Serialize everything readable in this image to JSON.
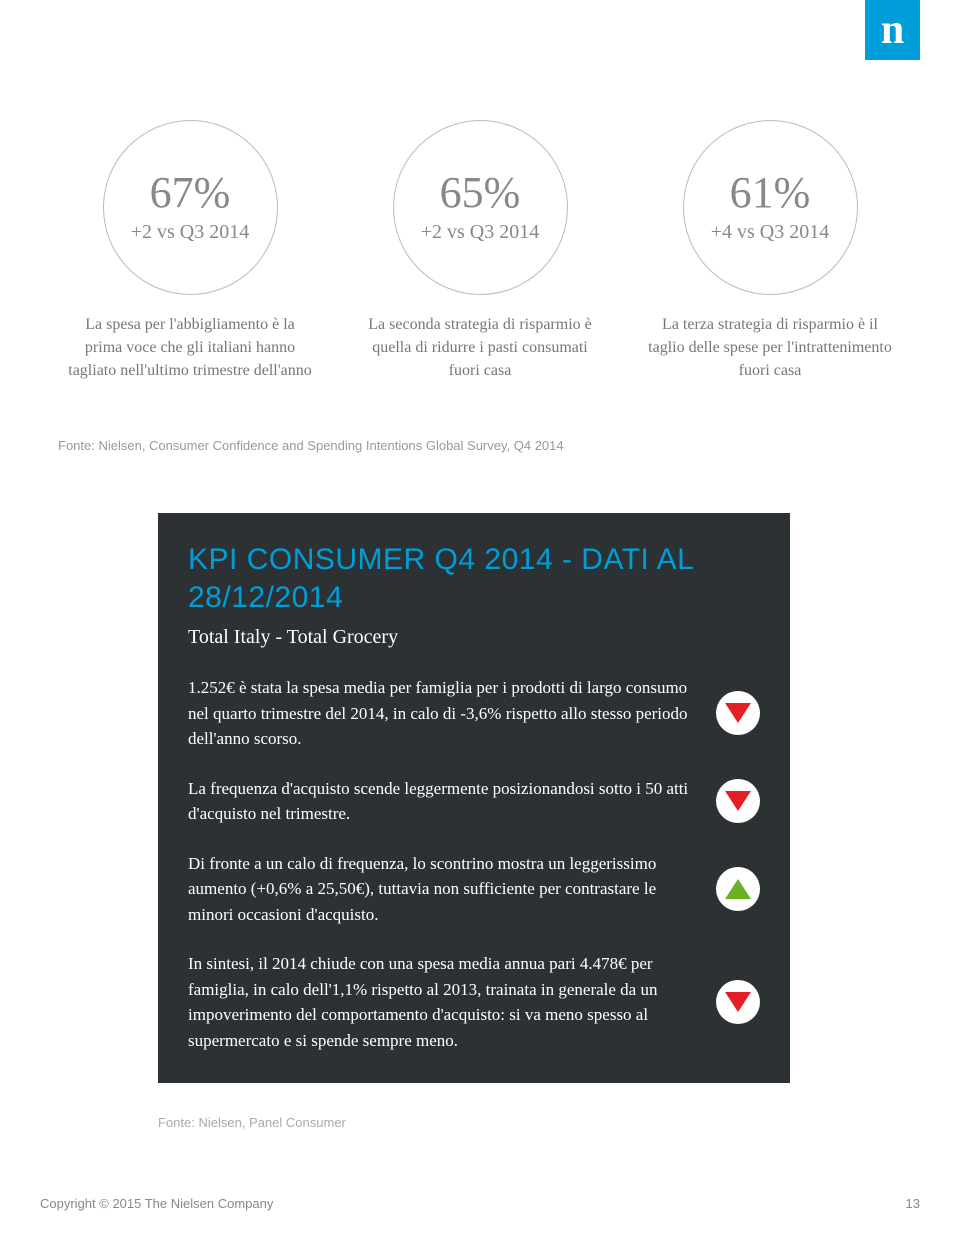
{
  "logo_letter": "n",
  "circles": [
    {
      "pct": "67%",
      "delta": "+2 vs Q3 2014",
      "desc": "La spesa per l'abbigliamento è la prima voce che gli italiani hanno tagliato nell'ultimo trimestre dell'anno"
    },
    {
      "pct": "65%",
      "delta": "+2 vs Q3 2014",
      "desc": "La seconda strategia di risparmio è quella di ridurre i pasti consumati fuori casa"
    },
    {
      "pct": "61%",
      "delta": "+4 vs Q3 2014",
      "desc": "La terza strategia di risparmio è il taglio delle spese per l'intrattenimento fuori casa"
    }
  ],
  "source_top": "Fonte: Nielsen, Consumer Confidence and Spending Intentions Global Survey, Q4 2014",
  "kpi": {
    "title": "KPI CONSUMER Q4 2014 - DATI AL 28/12/2014",
    "subtitle": "Total Italy - Total Grocery",
    "rows": [
      {
        "text": "1.252€ è stata la spesa media per famiglia per i prodotti di largo consumo nel quarto trimestre del 2014, in calo di -3,6% rispetto allo stesso periodo dell'anno scorso.",
        "trend": "down"
      },
      {
        "text": "La frequenza d'acquisto scende leggermente posizionandosi sotto i 50 atti d'acquisto nel trimestre.",
        "trend": "down"
      },
      {
        "text": "Di fronte a un calo di frequenza, lo scontrino mostra un leggerissimo aumento (+0,6% a 25,50€), tuttavia non sufficiente per contrastare le minori occasioni d'acquisto.",
        "trend": "up"
      },
      {
        "text": "In sintesi, il 2014 chiude con una spesa media annua pari 4.478€ per famiglia, in calo dell'1,1% rispetto al 2013, trainata in generale da un impoverimento del comportamento d'acquisto: si va meno spesso al supermercato e si spende sempre meno.",
        "trend": "down"
      }
    ]
  },
  "source_bottom": "Fonte: Nielsen, Panel Consumer",
  "footer": {
    "copyright": "Copyright © 2015 The Nielsen Company",
    "page": "13"
  },
  "colors": {
    "brand_blue": "#009dd9",
    "box_bg": "#2c3233",
    "down_red": "#e41e26",
    "up_green": "#6ab023"
  }
}
